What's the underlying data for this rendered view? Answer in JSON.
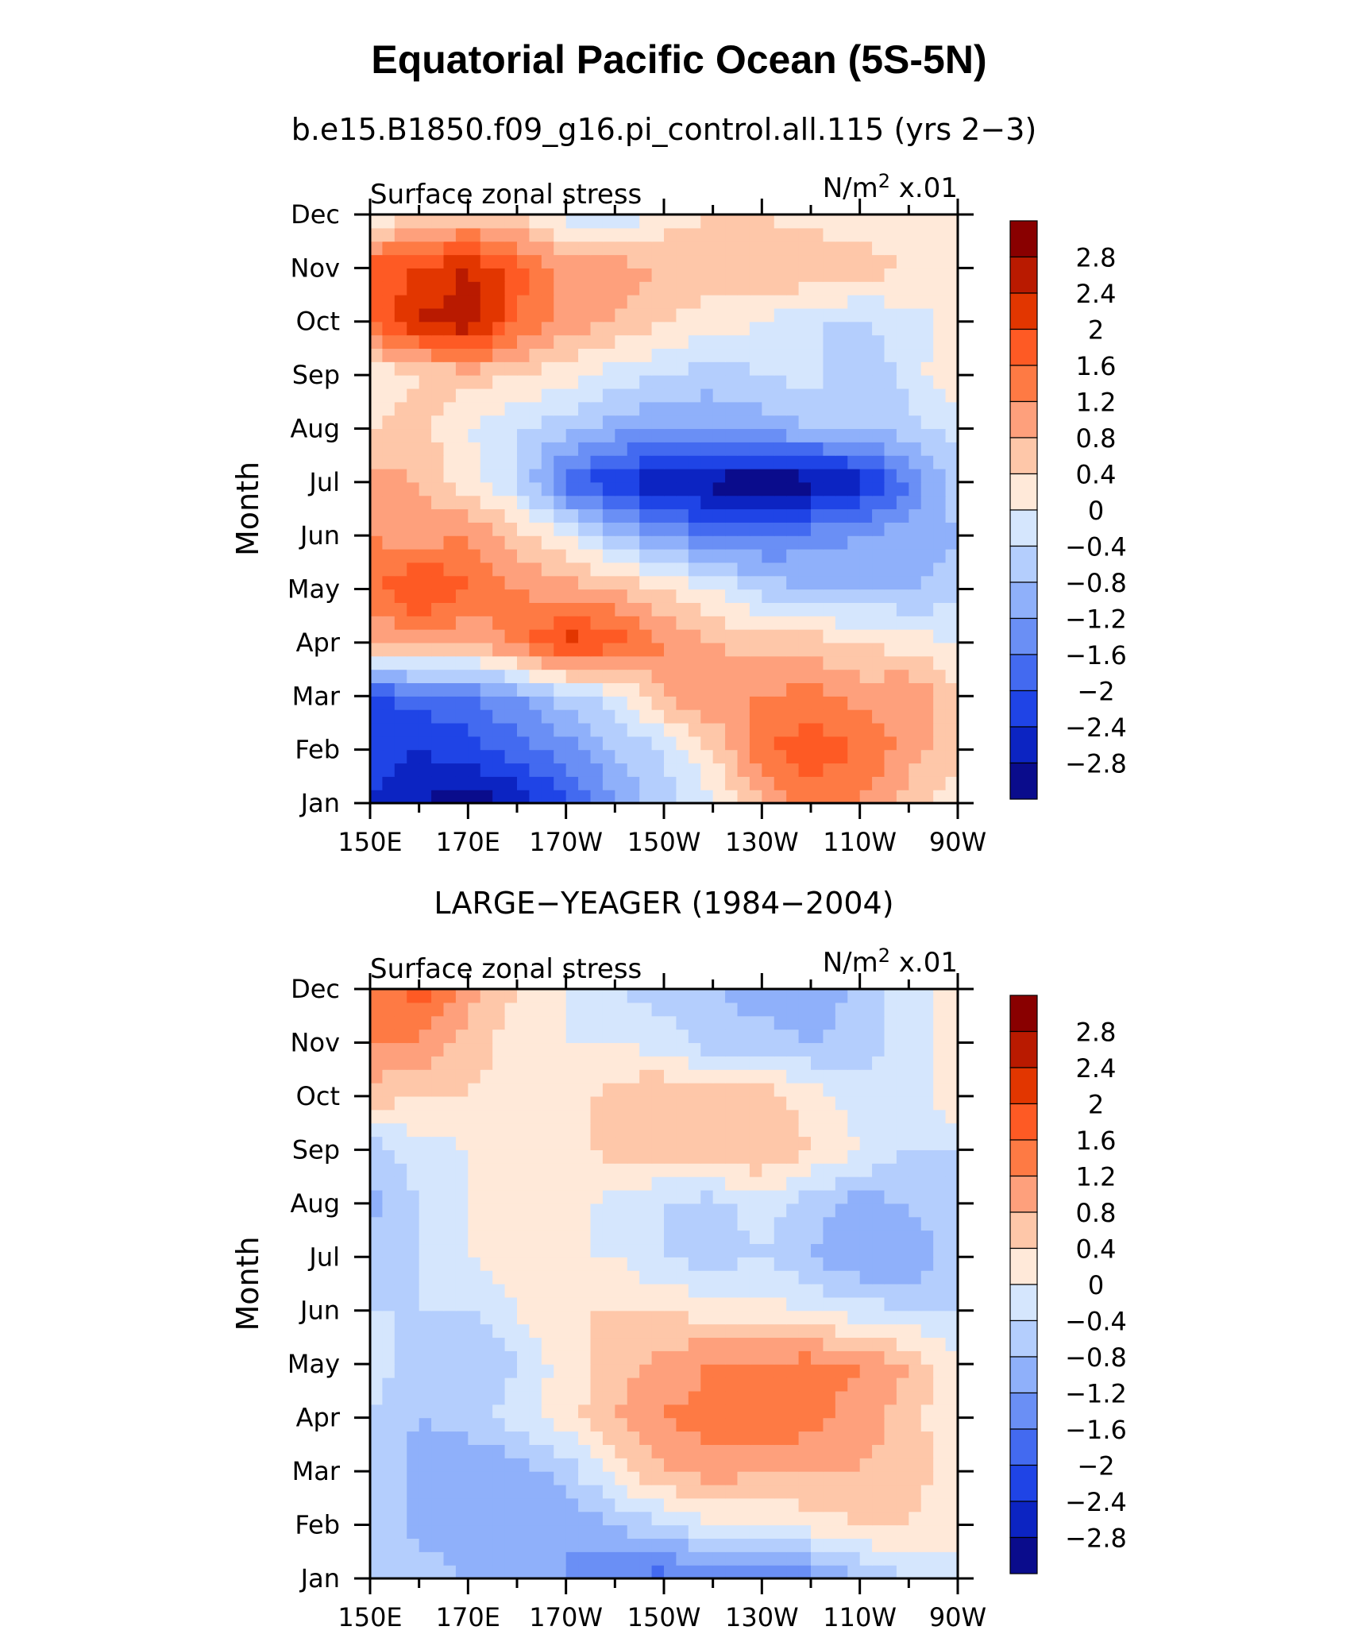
{
  "figure": {
    "title": "Equatorial Pacific Ocean (5S-5N)"
  },
  "colorbar": {
    "labels": [
      "2.8",
      "2.4",
      "2",
      "1.6",
      "1.2",
      "0.8",
      "0.4",
      "0",
      "−0.4",
      "−0.8",
      "−1.2",
      "−1.6",
      "−2",
      "−2.4",
      "−2.8"
    ],
    "colors": [
      "#890000",
      "#b91a00",
      "#e23600",
      "#fe5a24",
      "#fe7a44",
      "#fea07c",
      "#fec7a9",
      "#ffe9d9",
      "#d5e6fd",
      "#b4cefd",
      "#8fb0fa",
      "#6a8ff5",
      "#436af0",
      "#1f44e6",
      "#0c24c2",
      "#0a0c8c"
    ]
  },
  "chart_data": [
    {
      "type": "heatmap",
      "title": "b.e15.B1850.f09_g16.pi_control.all.115 (yrs 2−3)",
      "left_label": "Surface zonal stress",
      "units_label": "N/m",
      "units_exp": "2",
      "units_scale": " x.01",
      "ylabel": "Month",
      "y_categories": [
        "Jan",
        "Feb",
        "Mar",
        "Apr",
        "May",
        "Jun",
        "Jul",
        "Aug",
        "Sep",
        "Oct",
        "Nov",
        "Dec"
      ],
      "x_tick_labels": [
        "150E",
        "170E",
        "170W",
        "150W",
        "130W",
        "110W",
        "90W"
      ],
      "x_longitudes": [
        150,
        160,
        170,
        180,
        190,
        200,
        210,
        220,
        230,
        240,
        250,
        260,
        270
      ],
      "values": [
        [
          -2.4,
          -2.8,
          -3.0,
          -2.8,
          -2.0,
          -1.2,
          -0.6,
          0.0,
          0.8,
          1.4,
          1.2,
          0.6,
          0.2
        ],
        [
          -2.0,
          -2.4,
          -2.2,
          -1.8,
          -1.4,
          -0.8,
          -0.4,
          0.4,
          1.6,
          1.8,
          1.6,
          1.0,
          0.6
        ],
        [
          -2.2,
          -1.8,
          -1.6,
          -1.2,
          -0.6,
          -0.2,
          0.8,
          1.2,
          1.2,
          1.4,
          1.0,
          1.2,
          0.4
        ],
        [
          0.8,
          1.0,
          0.8,
          1.4,
          2.2,
          1.8,
          1.2,
          0.8,
          0.6,
          0.6,
          0.4,
          0.2,
          0.0
        ],
        [
          1.4,
          2.2,
          1.6,
          1.2,
          1.0,
          0.8,
          0.4,
          0.0,
          -0.6,
          -0.8,
          -0.8,
          -0.8,
          -0.6
        ],
        [
          1.2,
          1.0,
          1.2,
          0.6,
          0.0,
          -0.8,
          -1.2,
          -1.6,
          -1.6,
          -1.4,
          -1.2,
          -1.0,
          -0.8
        ],
        [
          1.0,
          0.8,
          0.2,
          -0.4,
          -1.8,
          -2.4,
          -2.8,
          -3.0,
          -3.2,
          -3.0,
          -2.6,
          -1.6,
          -0.6
        ],
        [
          0.4,
          0.6,
          0.0,
          -0.4,
          -0.6,
          -1.0,
          -1.2,
          -1.2,
          -1.0,
          -0.8,
          -0.8,
          -0.6,
          -0.2
        ],
        [
          0.0,
          0.4,
          0.6,
          0.4,
          0.2,
          -0.2,
          -0.4,
          -0.6,
          -0.4,
          -0.2,
          -0.8,
          -0.2,
          0.4
        ],
        [
          1.6,
          2.4,
          2.8,
          1.6,
          1.0,
          0.8,
          0.4,
          0.2,
          0.0,
          -0.4,
          -0.4,
          -0.2,
          0.2
        ],
        [
          1.8,
          2.0,
          2.4,
          1.8,
          1.0,
          1.0,
          0.8,
          0.6,
          0.8,
          0.8,
          0.6,
          0.4,
          0.2
        ],
        [
          0.0,
          0.4,
          0.6,
          0.4,
          -0.2,
          -0.4,
          0.2,
          0.4,
          0.4,
          0.2,
          0.2,
          0.0,
          0.0
        ]
      ],
      "color_levels": [
        -2.8,
        -2.4,
        -2.0,
        -1.6,
        -1.2,
        -0.8,
        -0.4,
        0.0,
        0.4,
        0.8,
        1.2,
        1.6,
        2.0,
        2.4,
        2.8
      ]
    },
    {
      "type": "heatmap",
      "title": "LARGE−YEAGER (1984−2004)",
      "left_label": "Surface zonal stress",
      "units_label": "N/m",
      "units_exp": "2",
      "units_scale": " x.01",
      "ylabel": "Month",
      "y_categories": [
        "Jan",
        "Feb",
        "Mar",
        "Apr",
        "May",
        "Jun",
        "Jul",
        "Aug",
        "Sep",
        "Oct",
        "Nov",
        "Dec"
      ],
      "x_tick_labels": [
        "150E",
        "170E",
        "170W",
        "150W",
        "130W",
        "110W",
        "90W"
      ],
      "x_longitudes": [
        150,
        160,
        170,
        180,
        190,
        200,
        210,
        220,
        230,
        240,
        250,
        260,
        270
      ],
      "values": [
        [
          -0.4,
          -0.4,
          -0.8,
          -0.8,
          -1.2,
          -1.6,
          -1.8,
          -1.6,
          -1.8,
          -1.4,
          -0.8,
          -0.4,
          0.0
        ],
        [
          -0.4,
          -1.0,
          -1.2,
          -1.2,
          -1.2,
          -0.8,
          -0.4,
          0.0,
          0.0,
          0.2,
          0.4,
          0.4,
          0.0
        ],
        [
          -0.4,
          -1.0,
          -1.2,
          -1.0,
          -0.6,
          0.2,
          0.8,
          1.0,
          0.8,
          0.8,
          0.8,
          0.6,
          0.2
        ],
        [
          -0.4,
          -0.8,
          -0.6,
          -0.2,
          0.2,
          0.8,
          1.2,
          1.4,
          1.6,
          1.4,
          1.0,
          0.6,
          0.0
        ],
        [
          -0.2,
          -0.6,
          -0.8,
          -0.4,
          0.2,
          0.6,
          1.0,
          1.2,
          1.2,
          1.4,
          1.2,
          0.8,
          0.0
        ],
        [
          -0.4,
          -0.4,
          -0.4,
          0.0,
          0.4,
          0.4,
          0.4,
          0.2,
          0.2,
          0.0,
          -0.2,
          -0.4,
          -0.4
        ],
        [
          -0.6,
          -0.4,
          0.0,
          0.2,
          0.0,
          0.0,
          -0.4,
          -0.6,
          -0.4,
          -0.8,
          -1.2,
          -1.2,
          -0.6
        ],
        [
          -1.0,
          -0.4,
          0.0,
          0.2,
          0.2,
          -0.2,
          -0.4,
          -0.6,
          -0.2,
          -0.6,
          -1.0,
          -0.8,
          -0.4
        ],
        [
          -0.6,
          -0.2,
          0.0,
          0.2,
          0.2,
          0.6,
          0.6,
          0.8,
          0.8,
          0.4,
          0.0,
          -0.4,
          -0.4
        ],
        [
          0.6,
          0.4,
          0.4,
          0.2,
          0.2,
          0.6,
          0.8,
          0.6,
          0.6,
          0.2,
          -0.2,
          -0.4,
          0.4
        ],
        [
          1.2,
          1.2,
          0.6,
          0.2,
          0.0,
          0.0,
          -0.2,
          -0.6,
          -0.6,
          -0.8,
          -0.6,
          -0.2,
          0.2
        ],
        [
          1.4,
          1.8,
          1.0,
          0.4,
          0.0,
          -0.4,
          -0.6,
          -0.8,
          -1.0,
          -1.2,
          -0.6,
          -0.2,
          0.2
        ]
      ],
      "color_levels": [
        -2.8,
        -2.4,
        -2.0,
        -1.6,
        -1.2,
        -0.8,
        -0.4,
        0.0,
        0.4,
        0.8,
        1.2,
        1.6,
        2.0,
        2.4,
        2.8
      ]
    }
  ]
}
